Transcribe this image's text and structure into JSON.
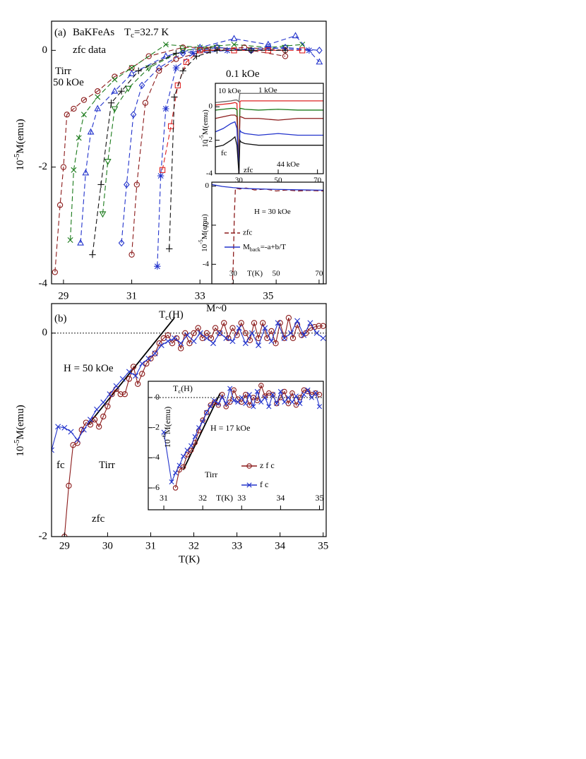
{
  "chart_data": [
    {
      "type": "scatter",
      "label": "(a)",
      "annotations": [
        [
          "BaKFeAs"
        ],
        [
          "T",
          "c",
          "=32.7 K"
        ],
        [
          "zfc data"
        ],
        [
          "Tirr"
        ],
        [
          "50 kOe"
        ],
        [
          "0.1 kOe"
        ]
      ],
      "ylabel": [
        "10",
        "-5",
        "M(emu)"
      ],
      "xlim": [
        28.65,
        36.7
      ],
      "ylim": [
        -4,
        0.5
      ],
      "xticks": [
        29,
        31,
        33,
        35
      ],
      "yticks": [
        0,
        -2,
        -4
      ],
      "series": [
        {
          "color": "#8b1a1a",
          "marker": "circle",
          "dash": true,
          "x": [
            28.75,
            28.9,
            29.0,
            29.1,
            29.3,
            29.6,
            30.0,
            30.5,
            31.0,
            31.5,
            32.5,
            33.5,
            34.5,
            35.5
          ],
          "values": [
            -3.8,
            -2.65,
            -2.0,
            -1.1,
            -1.0,
            -0.85,
            -0.7,
            -0.45,
            -0.3,
            -0.1,
            0.05,
            0.05,
            0.0,
            -0.1
          ]
        },
        {
          "color": "#1a7a1a",
          "marker": "x",
          "dash": true,
          "x": [
            29.2,
            29.3,
            29.45,
            29.6,
            30.0,
            30.5,
            31.0,
            32.0,
            33.0,
            34.0,
            35.0,
            36.0
          ],
          "values": [
            -3.25,
            -2.05,
            -1.5,
            -1.1,
            -0.8,
            -0.5,
            -0.3,
            0.1,
            0.05,
            0.1,
            0.05,
            0.1
          ]
        },
        {
          "color": "#2233cc",
          "marker": "tri-up",
          "dash": true,
          "x": [
            29.5,
            29.65,
            29.8,
            30.0,
            30.5,
            31.0,
            32.0,
            33.0,
            34.0,
            35.0,
            35.8,
            36.5
          ],
          "values": [
            -3.3,
            -2.1,
            -1.4,
            -1.0,
            -0.7,
            -0.4,
            -0.1,
            0.05,
            0.2,
            0.1,
            0.25,
            -0.2
          ]
        },
        {
          "color": "#1a7a1a",
          "marker": "tri-down",
          "dash": true,
          "x": [
            30.15,
            30.3,
            30.5,
            30.9,
            31.5,
            32.5,
            33.5,
            34.5,
            35.5
          ],
          "values": [
            -2.8,
            -1.9,
            -1.0,
            -0.65,
            -0.3,
            0.0,
            0.05,
            0.0,
            0.05
          ]
        },
        {
          "color": "#111111",
          "marker": "plus",
          "dash": true,
          "x": [
            29.85,
            30.1,
            30.4,
            30.7,
            31.2,
            32.3,
            33.3,
            34.5
          ],
          "values": [
            -3.5,
            -2.3,
            -0.9,
            -0.7,
            -0.35,
            -0.05,
            0.0,
            0.0
          ]
        },
        {
          "color": "#2233cc",
          "marker": "diamond",
          "dash": true,
          "x": [
            30.7,
            30.85,
            31.05,
            31.3,
            31.8,
            32.5,
            33.5,
            34.5,
            35.5,
            36.5
          ],
          "values": [
            -3.3,
            -2.3,
            -1.1,
            -0.6,
            -0.3,
            -0.05,
            0.05,
            0.0,
            0.05,
            0.0
          ]
        },
        {
          "color": "#8b1a1a",
          "marker": "circle",
          "dash": true,
          "x": [
            31.0,
            31.15,
            31.4,
            31.8,
            32.3,
            33.2,
            34.3,
            35.5
          ],
          "values": [
            -3.5,
            -2.3,
            -0.9,
            -0.35,
            -0.15,
            0.0,
            0.05,
            0.0
          ]
        },
        {
          "color": "#2233cc",
          "marker": "star",
          "dash": true,
          "x": [
            31.75,
            31.85,
            32.0,
            32.3,
            32.8,
            33.8,
            35.0,
            36.2
          ],
          "values": [
            -3.7,
            -2.15,
            -1.0,
            -0.3,
            -0.05,
            0.0,
            0.05,
            0.0
          ]
        },
        {
          "color": "#dd2222",
          "marker": "square",
          "dash": true,
          "x": [
            31.9,
            32.15,
            32.35,
            32.6,
            33.0,
            34.0,
            35.0,
            36.0
          ],
          "values": [
            -2.05,
            -1.3,
            -0.6,
            -0.2,
            0.0,
            0.0,
            0.0,
            0.0
          ]
        },
        {
          "color": "#111111",
          "marker": "plus",
          "dash": true,
          "x": [
            32.1,
            32.25,
            32.5,
            32.9,
            33.5,
            34.5,
            35.5
          ],
          "values": [
            -3.4,
            -0.8,
            -0.35,
            -0.1,
            0.0,
            0.0,
            0.0
          ]
        }
      ]
    },
    {
      "type": "line",
      "annotations": [
        [
          "10 kOe"
        ],
        [
          "1 kOe"
        ],
        [
          "fc"
        ],
        [
          "zfc"
        ],
        [
          "44 kOe"
        ]
      ],
      "ylabel": [
        "10",
        "-5",
        "M(emu)"
      ],
      "xlim": [
        18,
        73
      ],
      "ylim": [
        -4,
        1.4
      ],
      "xticks": [
        30,
        50,
        70
      ],
      "yticks": [
        0,
        -2,
        -4
      ],
      "x": [
        18,
        22,
        26,
        28,
        29,
        30,
        30.5,
        31,
        33,
        40,
        50,
        60,
        73
      ],
      "series": [
        {
          "color": "#666666",
          "values": [
            0.25,
            0.3,
            0.35,
            0.4,
            0.4,
            0.3,
            0.8,
            0.8,
            0.8,
            0.8,
            0.8,
            0.8,
            0.8
          ]
        },
        {
          "color": "#dd2222",
          "values": [
            0.1,
            0.15,
            0.2,
            0.25,
            0.2,
            -4,
            0.3,
            0.35,
            0.35,
            0.35,
            0.35,
            0.35,
            0.35
          ]
        },
        {
          "color": "#1a7a1a",
          "values": [
            -0.2,
            -0.15,
            -0.1,
            -0.1,
            -0.2,
            -4,
            -0.1,
            -0.1,
            -0.15,
            -0.2,
            -0.15,
            -0.2,
            -0.2
          ]
        },
        {
          "color": "#8b1a1a",
          "values": [
            -0.7,
            -0.6,
            -0.5,
            -0.5,
            -0.6,
            -4,
            -0.6,
            -0.6,
            -0.7,
            -0.7,
            -0.8,
            -0.7,
            -0.7
          ]
        },
        {
          "color": "#2233cc",
          "values": [
            -1.5,
            -1.3,
            -1.0,
            -0.9,
            -1.3,
            -4,
            -1.4,
            -1.5,
            -1.6,
            -1.7,
            -1.6,
            -1.7,
            -1.7
          ]
        },
        {
          "color": "#111111",
          "values": [
            -2.4,
            -2.3,
            -2.0,
            -1.8,
            -2.3,
            -4,
            -2.0,
            -2.1,
            -2.2,
            -2.3,
            -2.3,
            -2.3,
            -2.3
          ]
        }
      ]
    },
    {
      "type": "line",
      "xlabel": "T(K)",
      "annotations": [
        [
          "H = 30 kOe"
        ]
      ],
      "ylabel": [
        "10",
        "-5",
        "M(emu)"
      ],
      "xlim": [
        20,
        72
      ],
      "ylim": [
        -5,
        0.2
      ],
      "xticks": [
        30,
        50,
        70
      ],
      "yticks": [
        0,
        -2,
        -4
      ],
      "series": [
        {
          "name": "zfc",
          "color": "#8b1a1a",
          "dash": true,
          "x": [
            29.5,
            30,
            30.5,
            31,
            33,
            36,
            40,
            45,
            50,
            55,
            60,
            65,
            72
          ],
          "values": [
            -5.2,
            -4,
            -1.5,
            -0.1,
            -0.15,
            -0.1,
            -0.2,
            -0.15,
            -0.25,
            -0.2,
            -0.25,
            -0.22,
            -0.25
          ]
        },
        {
          "name": [
            "M",
            "back",
            "=-a+b/T"
          ],
          "color": "#2233cc",
          "x": [
            20,
            25,
            30,
            35,
            40,
            50,
            60,
            72
          ],
          "values": [
            0.08,
            -0.02,
            -0.08,
            -0.12,
            -0.14,
            -0.17,
            -0.19,
            -0.21
          ]
        }
      ]
    },
    {
      "type": "scatter",
      "label": "(b)",
      "xlabel": "T(K)",
      "annotations": [
        [
          "T",
          "c",
          "(H)"
        ],
        [
          "M~0"
        ],
        [
          "H = 50 kOe"
        ],
        [
          "fc"
        ],
        [
          "Tirr"
        ],
        [
          "zfc"
        ]
      ],
      "ylabel": [
        "10",
        "-5",
        "M(emu)"
      ],
      "xlim": [
        28.7,
        35.07
      ],
      "ylim": [
        -2,
        0.29
      ],
      "xticks": [
        29,
        30,
        31,
        32,
        33,
        34,
        35
      ],
      "yticks": [
        0,
        -2
      ],
      "zero_line": 0,
      "fit_line": {
        "x": [
          29.55,
          31.55
        ],
        "y": [
          -0.9,
          0.15
        ]
      },
      "series": [
        {
          "color": "#8b1a1a",
          "marker": "circle",
          "x": [
            29.0,
            29.1,
            29.2,
            29.3,
            29.4,
            29.5,
            29.6,
            29.7,
            29.8,
            29.9,
            30.0,
            30.1,
            30.2,
            30.3,
            30.4,
            30.5,
            30.6,
            30.7,
            30.8,
            30.9,
            31.0,
            31.1,
            31.2,
            31.3,
            31.4,
            31.5,
            31.6,
            31.7,
            31.8,
            31.9,
            32.0,
            32.1,
            32.2,
            32.3,
            32.4,
            32.5,
            32.6,
            32.7,
            32.8,
            32.9,
            33.0,
            33.1,
            33.2,
            33.3,
            33.4,
            33.5,
            33.6,
            33.7,
            33.8,
            33.9,
            34.0,
            34.1,
            34.2,
            34.3,
            34.4,
            34.5,
            34.6,
            34.7,
            34.8,
            34.9,
            35.0
          ],
          "values": [
            -2.0,
            -1.5,
            -1.1,
            -1.08,
            -0.95,
            -0.88,
            -0.9,
            -0.85,
            -0.92,
            -0.82,
            -0.72,
            -0.6,
            -0.55,
            -0.6,
            -0.6,
            -0.45,
            -0.33,
            -0.5,
            -0.4,
            -0.3,
            -0.25,
            -0.2,
            -0.1,
            -0.05,
            -0.02,
            -0.1,
            -0.05,
            -0.15,
            0.0,
            -0.1,
            0.0,
            0.05,
            -0.05,
            0.0,
            -0.05,
            0.05,
            0.0,
            0.1,
            -0.05,
            0.05,
            -0.02,
            0.1,
            0.0,
            -0.07,
            0.1,
            -0.05,
            0.1,
            -0.05,
            0.02,
            -0.1,
            0.1,
            -0.05,
            0.15,
            -0.05,
            0.08,
            -0.02,
            0.0,
            0.05,
            0.06,
            0.07,
            0.07
          ]
        },
        {
          "color": "#2233cc",
          "marker": "x",
          "x": [
            28.7,
            28.85,
            29.0,
            29.15,
            29.3,
            29.45,
            29.6,
            29.75,
            29.9,
            30.05,
            30.2,
            30.35,
            30.5,
            30.65,
            30.8,
            30.95,
            31.1,
            31.25,
            31.4,
            31.55,
            31.7,
            31.85,
            32.0,
            32.15,
            32.3,
            32.45,
            32.6,
            32.75,
            32.9,
            33.05,
            33.2,
            33.35,
            33.5,
            33.65,
            33.8,
            33.95,
            34.1,
            34.25,
            34.4,
            34.55,
            34.7,
            34.85,
            35.0
          ],
          "values": [
            -1.15,
            -0.92,
            -0.93,
            -0.97,
            -1.05,
            -0.95,
            -0.85,
            -0.75,
            -0.68,
            -0.6,
            -0.52,
            -0.45,
            -0.38,
            -0.42,
            -0.3,
            -0.25,
            -0.2,
            -0.12,
            -0.08,
            -0.05,
            -0.1,
            -0.02,
            -0.08,
            0.0,
            -0.05,
            -0.1,
            0.0,
            -0.05,
            -0.08,
            0.05,
            -0.1,
            0.0,
            -0.12,
            0.05,
            -0.08,
            0.1,
            -0.05,
            0.0,
            0.12,
            -0.02,
            0.1,
            0.0,
            -0.05
          ]
        }
      ]
    },
    {
      "type": "scatter",
      "xlabel": "T(K)",
      "annotations": [
        [
          "T",
          "c",
          "(H)"
        ],
        [
          "H = 17 kOe"
        ],
        [
          "Tirr"
        ]
      ],
      "ylabel": [
        "10",
        "-6",
        "M(emu)"
      ],
      "xlim": [
        30.6,
        35.1
      ],
      "ylim": [
        -7.45,
        1.08
      ],
      "xticks": [
        31,
        32,
        33,
        34,
        35
      ],
      "yticks": [
        0,
        -2,
        -4,
        -6
      ],
      "zero_line": 0,
      "fit_line": {
        "x": [
          31.5,
          32.45
        ],
        "y": [
          -4.8,
          0.3
        ]
      },
      "series": [
        {
          "name": "z f c",
          "color": "#8b1a1a",
          "marker": "circle",
          "x": [
            31.3,
            31.4,
            31.5,
            31.6,
            31.7,
            31.8,
            31.9,
            32.0,
            32.1,
            32.2,
            32.3,
            32.4,
            32.5,
            32.6,
            32.7,
            32.8,
            32.9,
            33.0,
            33.1,
            33.2,
            33.3,
            33.4,
            33.5,
            33.6,
            33.7,
            33.8,
            33.9,
            34.0,
            34.1,
            34.2,
            34.3,
            34.4,
            34.5,
            34.6,
            34.7,
            34.8,
            34.9,
            35.0
          ],
          "values": [
            -6,
            -4.8,
            -4.6,
            -3.8,
            -3.5,
            -3.0,
            -2.2,
            -1.5,
            -1.0,
            -0.5,
            -0.3,
            -0.5,
            0.2,
            -0.6,
            -0.3,
            0.5,
            -0.1,
            -0.3,
            0.2,
            -0.5,
            0.0,
            -0.2,
            0.8,
            0.1,
            0.3,
            0.2,
            -0.4,
            0.0,
            0.4,
            -0.4,
            0.3,
            -0.5,
            0.0,
            0.5,
            0.4,
            0.2,
            0.3,
            0.2
          ]
        },
        {
          "name": "f c",
          "color": "#2233cc",
          "marker": "x",
          "x": [
            31.0,
            31.2,
            31.3,
            31.4,
            31.5,
            31.6,
            31.7,
            31.8,
            31.9,
            32.0,
            32.1,
            32.2,
            32.3,
            32.4,
            32.5,
            32.6,
            32.7,
            32.8,
            32.9,
            33.0,
            33.1,
            33.2,
            33.3,
            33.4,
            33.5,
            33.6,
            33.7,
            33.8,
            33.9,
            34.0,
            34.1,
            34.2,
            34.3,
            34.4,
            34.5,
            34.6,
            34.7,
            34.8,
            34.9,
            35.0
          ],
          "values": [
            -2.3,
            -5.6,
            -5.0,
            -4.5,
            -3.9,
            -3.5,
            -3.2,
            -2.6,
            -2.0,
            -1.6,
            -1.0,
            -0.6,
            -0.2,
            -0.4,
            0.0,
            -0.4,
            0.6,
            -0.2,
            -0.3,
            0.0,
            -0.4,
            0.2,
            -0.6,
            0.4,
            -0.3,
            0.0,
            -0.6,
            0.2,
            -0.4,
            0.4,
            -0.3,
            0.0,
            -0.3,
            0.1,
            -0.4,
            0.2,
            0.5,
            0.0,
            0.3,
            -0.6
          ]
        }
      ]
    }
  ]
}
